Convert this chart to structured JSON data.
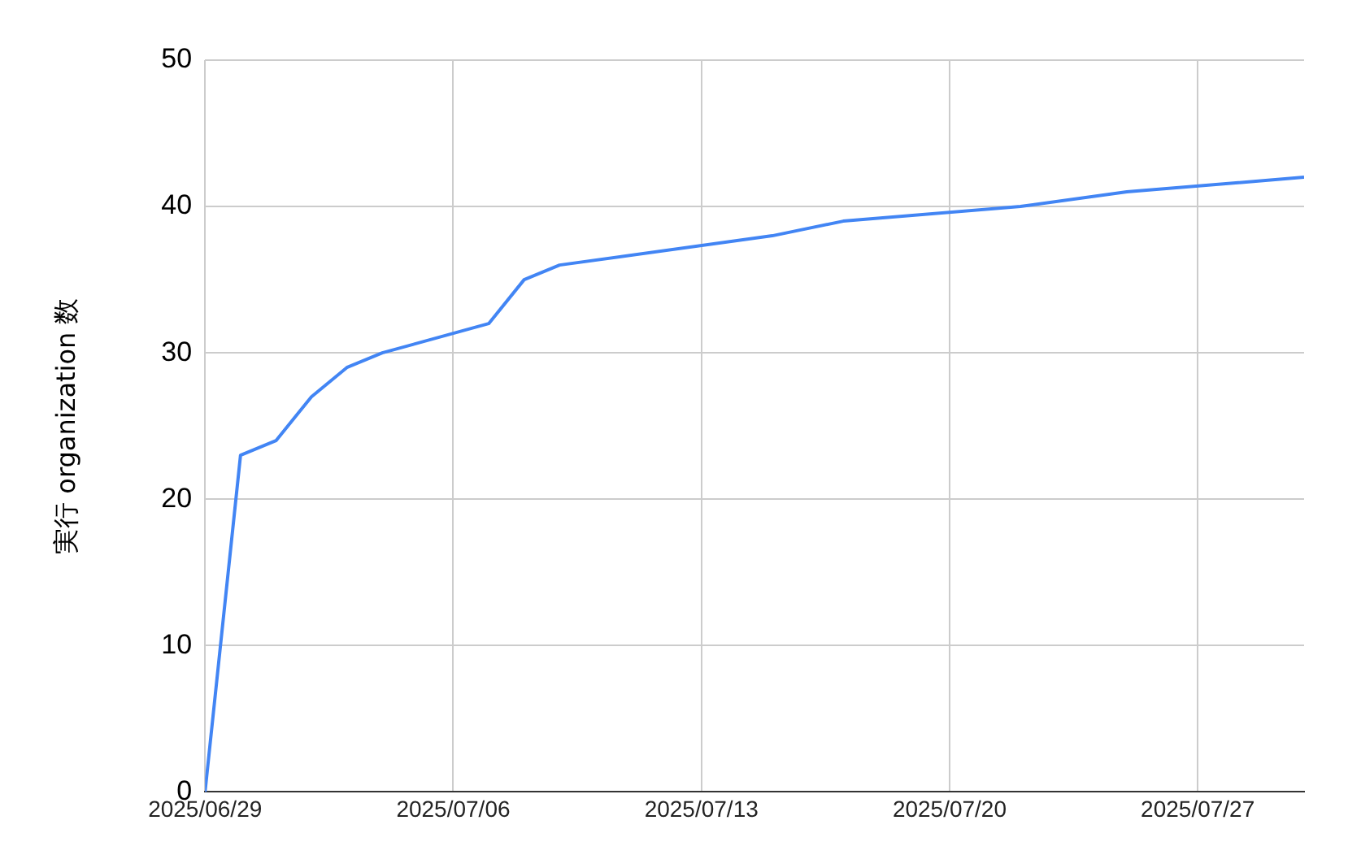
{
  "chart_data": {
    "type": "line",
    "ylabel": "実行 organization 数",
    "x": [
      "2025-06-29",
      "2025-06-30",
      "2025-07-01",
      "2025-07-02",
      "2025-07-03",
      "2025-07-04",
      "2025-07-07",
      "2025-07-08",
      "2025-07-09",
      "2025-07-15",
      "2025-07-17",
      "2025-07-22",
      "2025-07-25",
      "2025-07-30"
    ],
    "series": [
      {
        "color": "#4285f4",
        "values": [
          0,
          23,
          24,
          27,
          29,
          30,
          32,
          35,
          36,
          38,
          39,
          40,
          41,
          42
        ]
      }
    ],
    "xlim": [
      "2025-06-29",
      "2025-07-30"
    ],
    "xticks": [
      {
        "value": "2025-06-29",
        "label": "2025/06/29"
      },
      {
        "value": "2025-07-06",
        "label": "2025/07/06"
      },
      {
        "value": "2025-07-13",
        "label": "2025/07/13"
      },
      {
        "value": "2025-07-20",
        "label": "2025/07/20"
      },
      {
        "value": "2025-07-27",
        "label": "2025/07/27"
      }
    ],
    "ylim": [
      0,
      50
    ],
    "yticks": [
      0,
      10,
      20,
      30,
      40,
      50
    ],
    "grid": true,
    "legend": false,
    "marker": "none",
    "line_style": "solid"
  }
}
